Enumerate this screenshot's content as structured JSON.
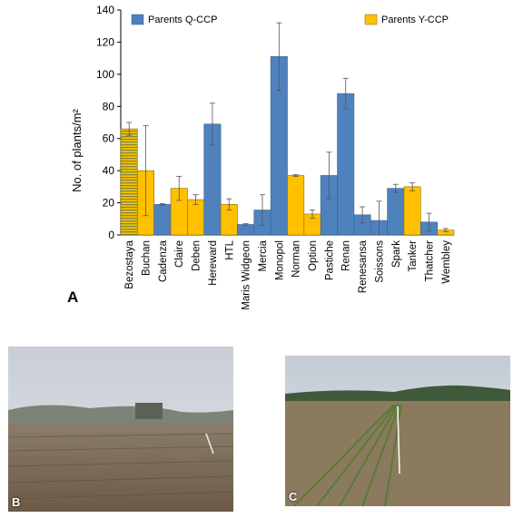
{
  "figure": {
    "panel_a_label": "A",
    "panel_b_label": "B",
    "panel_c_label": "C"
  },
  "colors": {
    "q_ccp": "#4f81bd",
    "y_ccp": "#ffc000",
    "bezostaya": "#b09a40"
  },
  "chart_data": {
    "type": "bar",
    "ylabel": "No. of plants/m²",
    "xlabel": "",
    "ylim": [
      0,
      140
    ],
    "yticks": [
      0,
      20,
      40,
      60,
      80,
      100,
      120,
      140
    ],
    "grid": false,
    "legend_entries": [
      "Parents Q-CCP",
      "Parents Y-CCP"
    ],
    "categories": [
      "Bezostaya",
      "Buchan",
      "Cadenza",
      "Claire",
      "Deben",
      "Hereward",
      "HTL",
      "Maris Widgeon",
      "Mercia",
      "Monopol",
      "Norman",
      "Option",
      "Pastiche",
      "Renan",
      "Renesansa",
      "Soissons",
      "Spark",
      "Tanker",
      "Thatcher",
      "Wembley"
    ],
    "groups": [
      "both",
      "Y",
      "Q",
      "Y",
      "Y",
      "Q",
      "Y",
      "Q",
      "Q",
      "Q",
      "Y",
      "Y",
      "Q",
      "Q",
      "Q",
      "Q",
      "Q",
      "Y",
      "Q",
      "Y"
    ],
    "values": [
      66,
      40,
      19,
      29,
      22,
      69,
      19,
      6.5,
      15.5,
      111,
      37,
      13,
      37,
      88,
      12.5,
      9,
      29,
      30,
      8,
      3
    ],
    "errors": [
      4,
      28,
      0.5,
      7.5,
      3,
      13,
      3.5,
      0.5,
      9.5,
      21,
      0.5,
      2.5,
      14.5,
      9.5,
      5,
      12,
      2.5,
      2.5,
      5.5,
      1
    ]
  },
  "photos": {
    "b": "field-photo-early",
    "c": "field-photo-later"
  }
}
